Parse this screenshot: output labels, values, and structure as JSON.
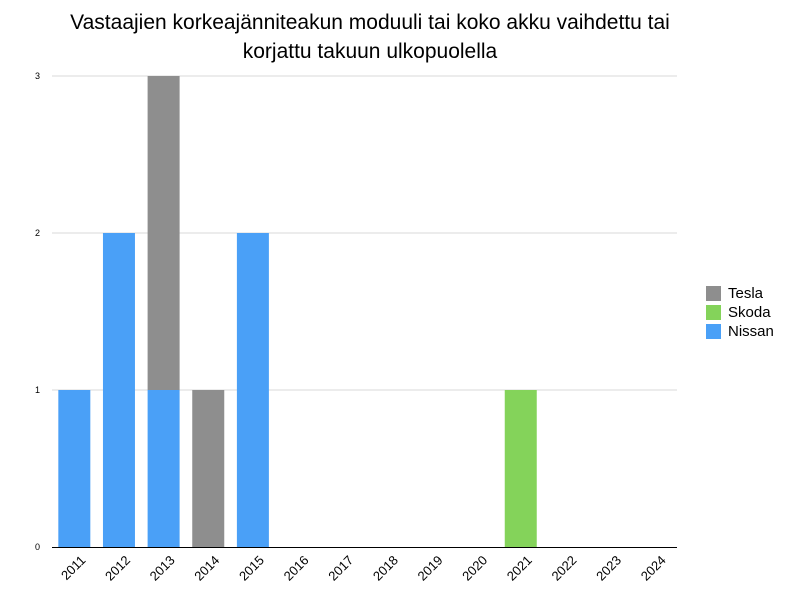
{
  "chart_data": {
    "type": "bar",
    "stacked": true,
    "title_lines": [
      "Vastaajien korkeajänniteakun moduuli tai koko akku vaihdettu tai",
      "korjattu takuun ulkopuolella"
    ],
    "categories": [
      "2011",
      "2012",
      "2013",
      "2014",
      "2015",
      "2016",
      "2017",
      "2018",
      "2019",
      "2020",
      "2021",
      "2022",
      "2023",
      "2024"
    ],
    "series": [
      {
        "name": "Nissan",
        "color": "#4aa0f7",
        "values": [
          1,
          2,
          1,
          0,
          2,
          0,
          0,
          0,
          0,
          0,
          0,
          0,
          0,
          0
        ]
      },
      {
        "name": "Skoda",
        "color": "#84d35a",
        "values": [
          0,
          0,
          0,
          0,
          0,
          0,
          0,
          0,
          0,
          0,
          1,
          0,
          0,
          0
        ]
      },
      {
        "name": "Tesla",
        "color": "#8e8e8e",
        "values": [
          0,
          0,
          2,
          1,
          0,
          0,
          0,
          0,
          0,
          0,
          0,
          0,
          0,
          0
        ]
      }
    ],
    "legend_order": [
      "Tesla",
      "Skoda",
      "Nissan"
    ],
    "legend_position": "right",
    "ylim": [
      0,
      3
    ],
    "yticks": [
      "0",
      "1",
      "2",
      "3"
    ],
    "grid": true,
    "xlabel": "",
    "ylabel": ""
  }
}
